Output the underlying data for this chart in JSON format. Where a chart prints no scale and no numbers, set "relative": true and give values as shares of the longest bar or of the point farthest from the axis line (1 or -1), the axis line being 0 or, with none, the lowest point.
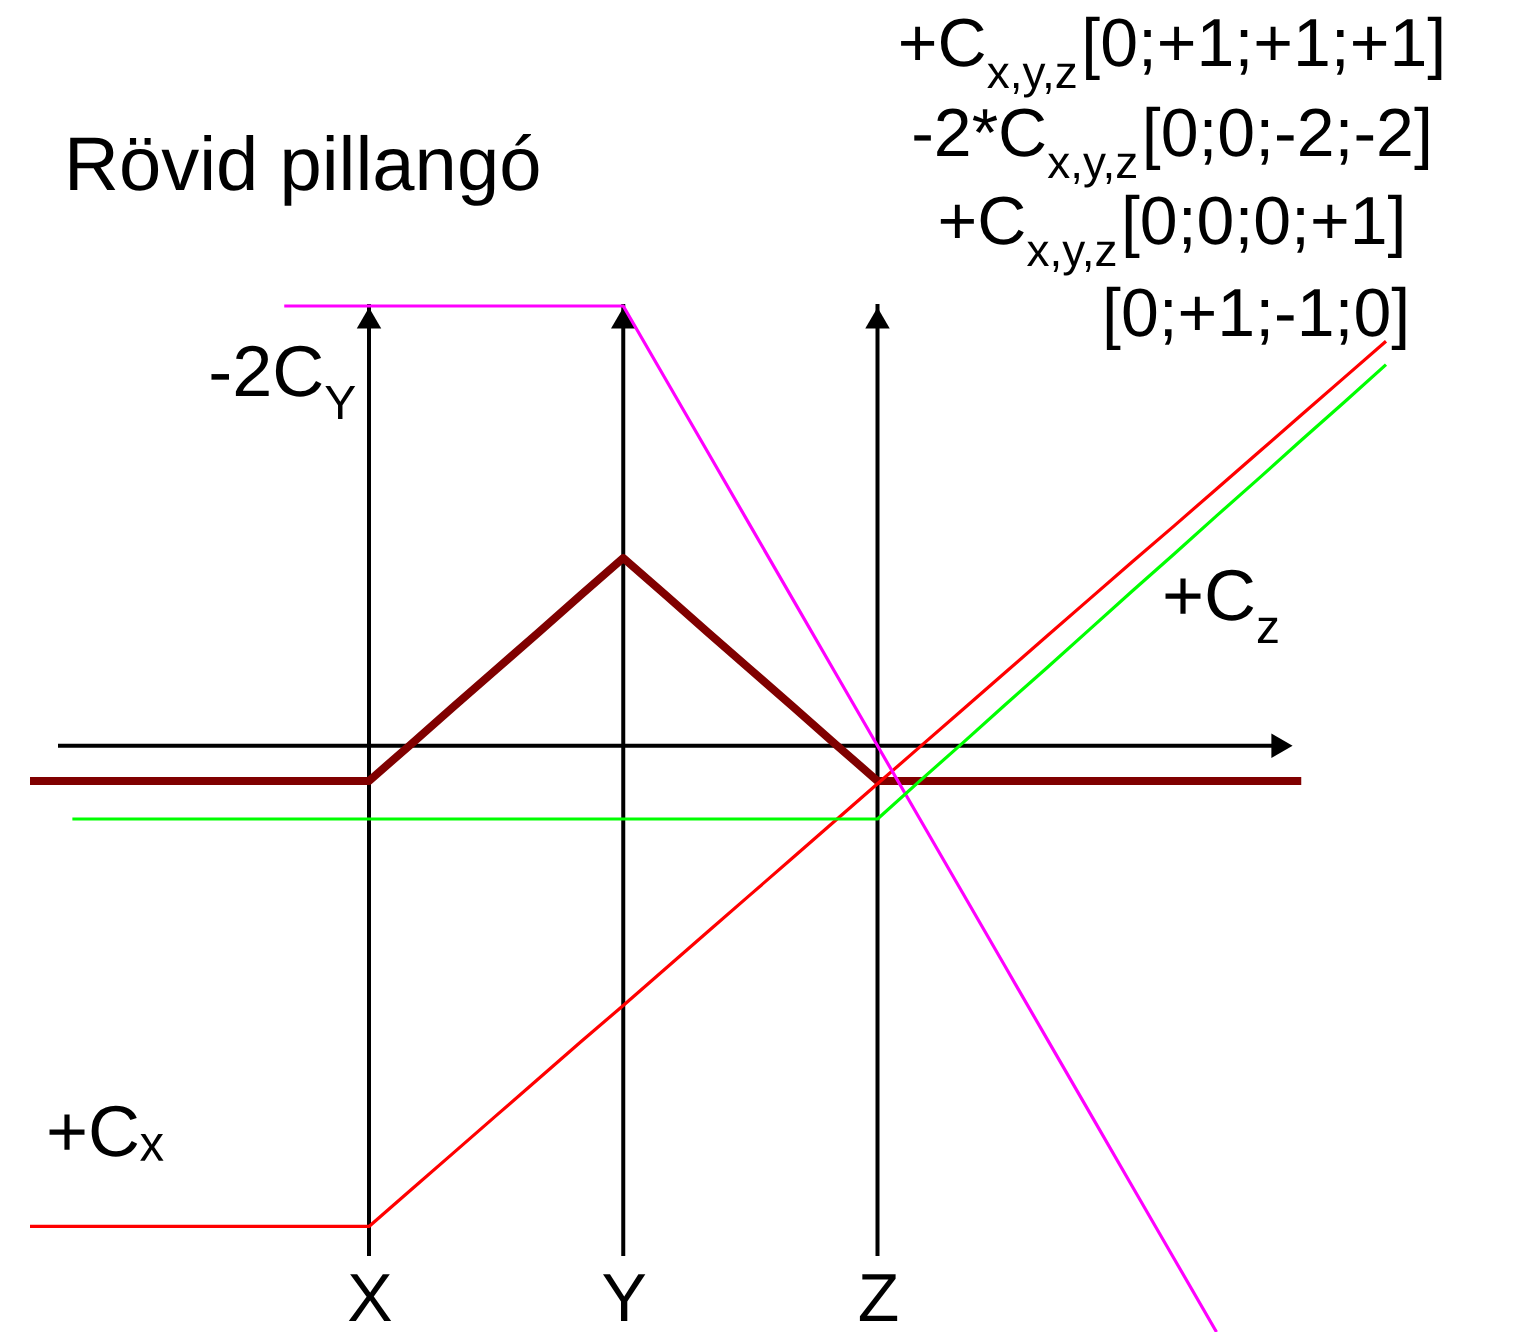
{
  "chart_data": {
    "type": "line",
    "title": "Rövid pillangó",
    "relative": true,
    "grid": "x",
    "categories": [
      null,
      null,
      null,
      null,
      null,
      null,
      null,
      null,
      "X",
      null,
      null,
      null,
      null,
      null,
      "Y",
      null,
      null,
      null,
      null,
      null,
      "Z",
      null,
      null,
      null,
      null,
      null,
      null,
      null,
      null,
      null,
      null,
      null,
      null
    ],
    "series": [
      {
        "color": "#800000",
        "values": [
          -0.06,
          -0.06,
          -0.06,
          -0.06,
          -0.06,
          -0.06,
          -0.06,
          -0.06,
          -0.06,
          0.003,
          0.067,
          0.13,
          0.193,
          0.257,
          0.32,
          0.257,
          0.193,
          0.13,
          0.067,
          0.003,
          -0.06,
          -0.06,
          -0.06,
          -0.06,
          -0.06,
          -0.06,
          -0.06,
          -0.06,
          -0.06,
          -0.06,
          -0.06,
          null,
          null
        ]
      },
      {
        "name": "+Cₓ",
        "color": "#ff0000",
        "values": [
          -0.82,
          -0.82,
          -0.82,
          -0.82,
          -0.82,
          -0.82,
          -0.82,
          -0.82,
          -0.82,
          -0.757,
          -0.694,
          -0.631,
          -0.568,
          -0.505,
          -0.443,
          -0.38,
          -0.317,
          -0.254,
          -0.191,
          -0.128,
          -0.065,
          -0.002,
          0.061,
          0.124,
          0.187,
          0.25,
          0.313,
          0.375,
          0.438,
          0.501,
          0.564,
          0.627,
          0.69
        ]
      },
      {
        "name": "-2C$_{Y}$",
        "color": "#ff00ff",
        "values": [
          null,
          null,
          null,
          null,
          null,
          null,
          0.75,
          0.75,
          0.75,
          0.75,
          0.75,
          0.75,
          0.75,
          0.75,
          0.75,
          0.625,
          0.5,
          0.375,
          0.25,
          0.125,
          0,
          -0.125,
          -0.25,
          -0.375,
          -0.5,
          -0.625,
          -0.75,
          -0.875,
          -1,
          null,
          null,
          null,
          null
        ]
      },
      {
        "name": "+C$_{z}$",
        "color": "#00ff00",
        "values": [
          null,
          -0.125,
          -0.125,
          -0.125,
          -0.125,
          -0.125,
          -0.125,
          -0.125,
          -0.125,
          -0.125,
          -0.125,
          -0.125,
          -0.125,
          -0.125,
          -0.125,
          -0.125,
          -0.125,
          -0.125,
          -0.125,
          -0.125,
          -0.125,
          -0.06,
          0.004,
          0.069,
          0.133,
          0.198,
          0.263,
          0.327,
          0.392,
          0.456,
          0.521,
          0.585,
          0.65
        ]
      }
    ],
    "annotations": [
      "+C$_{x,y,z}$[0;+1;+1;+1]",
      "-2*C$_{x,y,z}$[0;0;-2;-2]",
      "+C$_{x,y,z}$[0;0;0;+1]",
      "[0;+1;-1;0]"
    ]
  }
}
